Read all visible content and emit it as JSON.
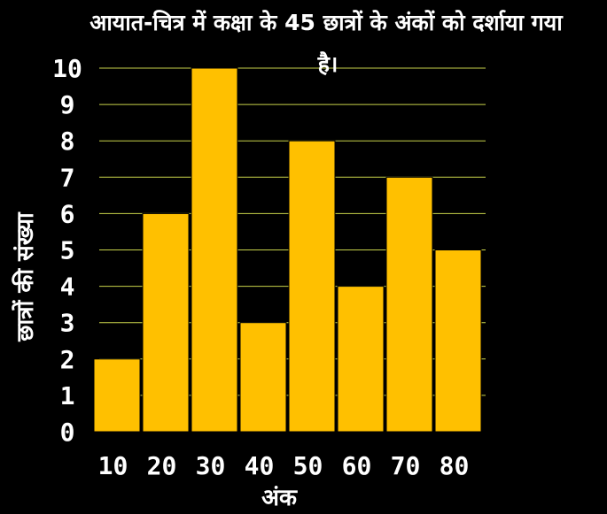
{
  "chart_data": {
    "type": "bar",
    "title_line1": "आयात-चित्र में कक्षा के 45 छात्रों के अंकों को दर्शाया गया",
    "title_line2": "है।",
    "xlabel": "अंक",
    "ylabel": "छात्रों की संख्या",
    "categories": [
      "10",
      "20",
      "30",
      "40",
      "50",
      "60",
      "70",
      "80"
    ],
    "values": [
      2,
      6,
      10,
      3,
      8,
      4,
      7,
      5
    ],
    "yticks": [
      "0",
      "1",
      "2",
      "3",
      "4",
      "5",
      "6",
      "7",
      "8",
      "9",
      "10"
    ],
    "ylim": [
      0,
      10
    ],
    "grid": true,
    "bar_color": "#FFC000",
    "grid_color": "#C8D24A",
    "background": "#000000",
    "text_color": "#FFFFFF"
  }
}
